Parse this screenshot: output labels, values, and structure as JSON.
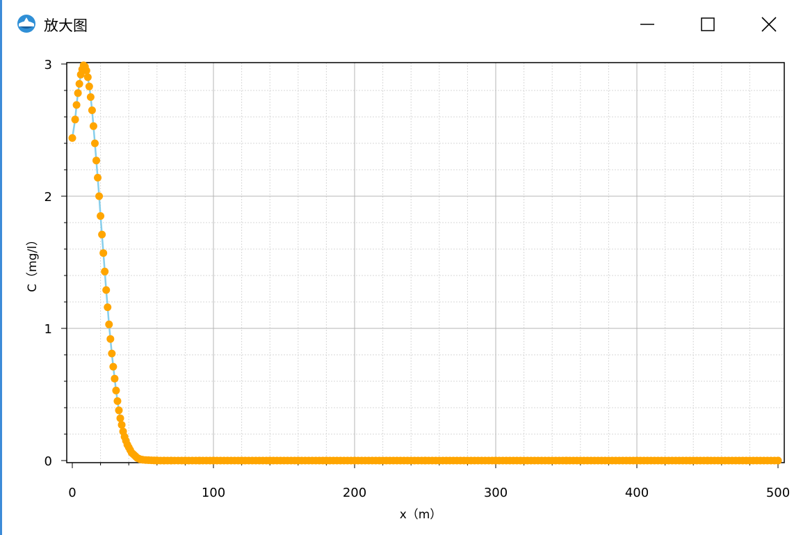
{
  "window": {
    "title": "放大图",
    "icon": "water-drop-app-icon",
    "controls": [
      "minimize-icon",
      "maximize-icon",
      "close-icon"
    ]
  },
  "colors": {
    "marker": "#ffa500",
    "line": "#87ceeb",
    "major_grid": "#b4b4b4",
    "minor_grid": "#d7d7d7",
    "window_edge": "#3c8bd8"
  },
  "chart_data": {
    "type": "line",
    "xlabel": "x（m）",
    "ylabel": "C（mg/l）",
    "xlim": [
      0,
      500
    ],
    "ylim": [
      0,
      3
    ],
    "x_ticks": [
      "0",
      "100",
      "200",
      "300",
      "400",
      "500"
    ],
    "y_ticks": [
      "0",
      "1",
      "2",
      "3"
    ],
    "grid": true,
    "minor_grid": true,
    "markers": "circle",
    "series": [
      {
        "x": [
          0,
          2,
          3,
          4,
          5,
          6,
          7,
          8,
          9,
          10,
          11,
          12,
          13,
          14,
          15,
          16,
          17,
          18,
          19,
          20,
          21,
          22,
          23,
          24,
          25,
          26,
          27,
          28,
          29,
          30,
          31,
          32,
          33,
          34,
          35,
          36,
          37,
          38,
          39,
          40,
          41,
          42,
          43,
          44,
          45,
          46,
          47,
          48,
          49,
          50,
          52,
          54,
          56,
          58,
          60,
          65,
          70,
          80,
          90,
          100,
          120,
          140,
          160,
          180,
          200,
          250,
          300,
          350,
          400,
          450,
          500
        ],
        "y": [
          2.44,
          2.58,
          2.69,
          2.78,
          2.85,
          2.92,
          2.96,
          2.99,
          2.98,
          2.95,
          2.9,
          2.83,
          2.75,
          2.65,
          2.53,
          2.4,
          2.27,
          2.14,
          2.0,
          1.85,
          1.71,
          1.57,
          1.43,
          1.29,
          1.16,
          1.03,
          0.92,
          0.81,
          0.71,
          0.62,
          0.53,
          0.45,
          0.38,
          0.32,
          0.27,
          0.22,
          0.18,
          0.15,
          0.12,
          0.1,
          0.08,
          0.06,
          0.05,
          0.04,
          0.03,
          0.02,
          0.015,
          0.01,
          0.008,
          0.006,
          0.004,
          0.003,
          0.002,
          0.001,
          0.001,
          0.0,
          0.0,
          0.0,
          0.0,
          0.0,
          0.0,
          0.0,
          0.0,
          0.0,
          0.0,
          0.0,
          0.0,
          0.0,
          0.0,
          0.0,
          0.0
        ]
      }
    ]
  }
}
